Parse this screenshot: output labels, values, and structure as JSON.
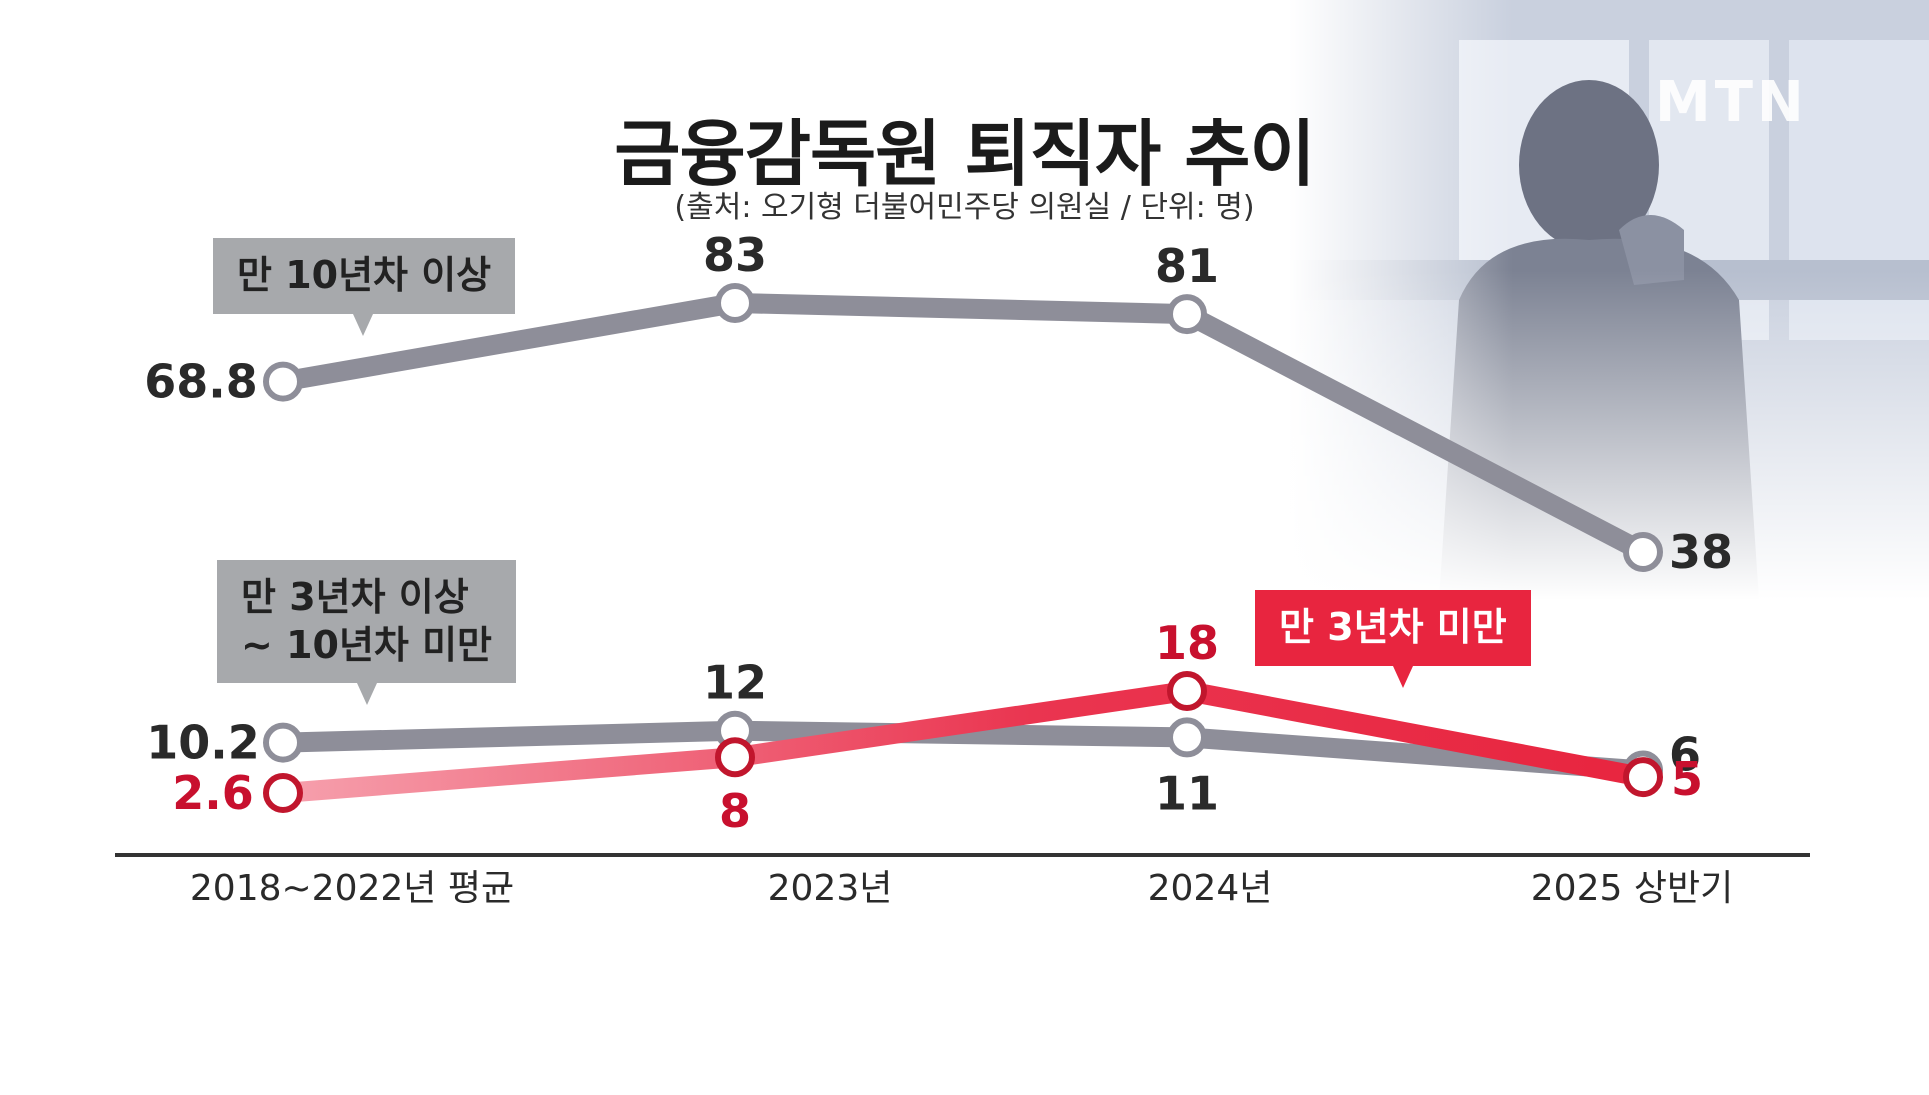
{
  "header": {
    "title": "금융감독원 퇴직자 추이",
    "subtitle": "(출처: 오기형 더불어민주당 의원실 / 단위: 명)"
  },
  "logo": {
    "text": "MTN"
  },
  "callouts": {
    "over10": "만 10년차 이상",
    "mid_line1": "만 3년차 이상",
    "mid_line2": "~ 10년차 미만",
    "under3": "만 3년차 미만"
  },
  "colors": {
    "gray_line": "#8e8e99",
    "red_line": "#e8253f",
    "callout_gray": "#a7a9ac",
    "callout_red": "#e8253f",
    "axis": "#333333"
  },
  "chart_data": {
    "type": "line",
    "title": "금융감독원 퇴직자 추이",
    "subtitle": "(출처: 오기형 더불어민주당 의원실 / 단위: 명)",
    "categories": [
      "2018~2022년 평균",
      "2023년",
      "2024년",
      "2025 상반기"
    ],
    "series": [
      {
        "name": "만 10년차 이상",
        "values": [
          68.8,
          83,
          81,
          38
        ],
        "labels": [
          "68.8",
          "83",
          "81",
          "38"
        ],
        "color": "#8e8e99"
      },
      {
        "name": "만 3년차 이상 ~ 10년차 미만",
        "values": [
          10.2,
          12,
          11,
          6
        ],
        "labels": [
          "10.2",
          "12",
          "11",
          "6"
        ],
        "color": "#8e8e99"
      },
      {
        "name": "만 3년차 미만",
        "values": [
          2.6,
          8,
          18,
          5
        ],
        "labels": [
          "2.6",
          "8",
          "18",
          "5"
        ],
        "color": "#e8253f"
      }
    ],
    "grid": false,
    "legend": "callouts"
  }
}
